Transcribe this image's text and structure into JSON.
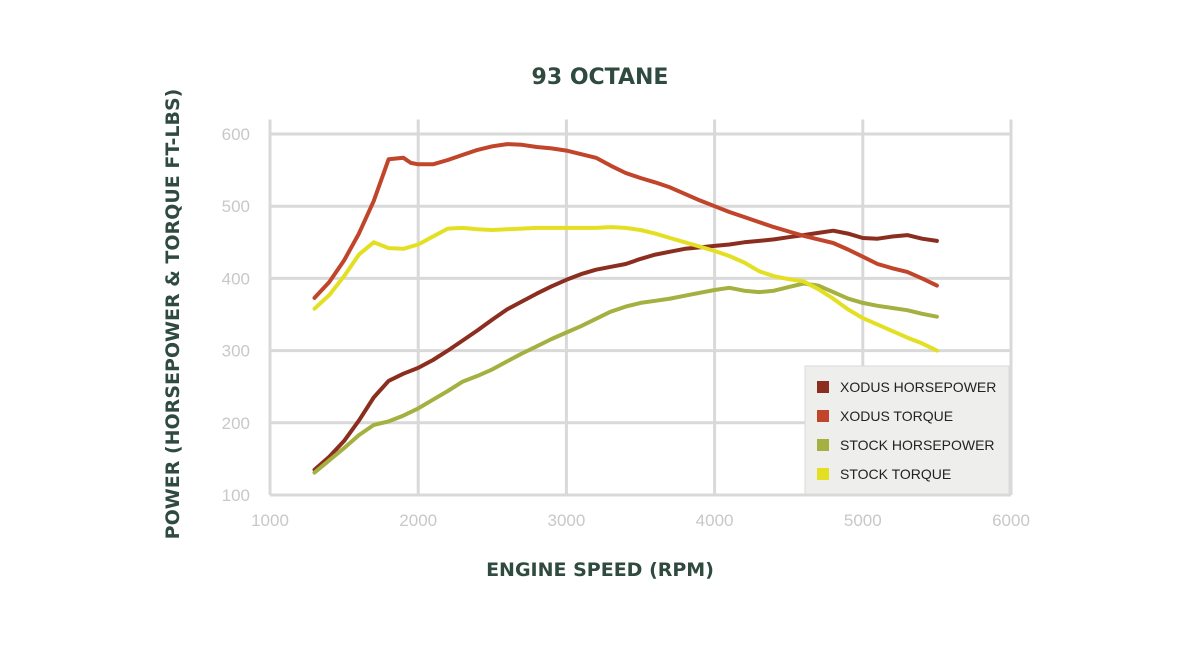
{
  "chart_data": {
    "type": "line",
    "title": "93 OCTANE",
    "xlabel": "ENGINE SPEED (RPM)",
    "ylabel": "POWER (HORSEPOWER & TORQUE FT-LBS)",
    "xlim": [
      1000,
      6000
    ],
    "ylim": [
      100,
      620
    ],
    "xticks": [
      1000,
      2000,
      3000,
      4000,
      5000,
      6000
    ],
    "yticks": [
      100,
      200,
      300,
      400,
      500,
      600
    ],
    "xtick_labels": [
      "1000",
      "2000",
      "3000",
      "4000",
      "5000",
      "6000"
    ],
    "ytick_labels": [
      "100",
      "200",
      "300",
      "400",
      "500",
      "600"
    ],
    "grid": true,
    "legend_position": "bottom-right",
    "series": [
      {
        "name": "XODUS HORSEPOWER",
        "color": "#8b2e1f",
        "points": [
          [
            1300,
            135
          ],
          [
            1400,
            153
          ],
          [
            1500,
            175
          ],
          [
            1600,
            203
          ],
          [
            1700,
            235
          ],
          [
            1800,
            258
          ],
          [
            1900,
            268
          ],
          [
            2000,
            276
          ],
          [
            2100,
            287
          ],
          [
            2200,
            300
          ],
          [
            2300,
            314
          ],
          [
            2400,
            328
          ],
          [
            2500,
            343
          ],
          [
            2600,
            357
          ],
          [
            2700,
            368
          ],
          [
            2800,
            379
          ],
          [
            2900,
            389
          ],
          [
            3000,
            398
          ],
          [
            3100,
            406
          ],
          [
            3200,
            412
          ],
          [
            3300,
            416
          ],
          [
            3400,
            420
          ],
          [
            3500,
            427
          ],
          [
            3600,
            433
          ],
          [
            3700,
            437
          ],
          [
            3800,
            441
          ],
          [
            3900,
            443
          ],
          [
            4000,
            445
          ],
          [
            4100,
            447
          ],
          [
            4200,
            450
          ],
          [
            4300,
            452
          ],
          [
            4400,
            454
          ],
          [
            4500,
            457
          ],
          [
            4600,
            460
          ],
          [
            4700,
            463
          ],
          [
            4800,
            466
          ],
          [
            4900,
            462
          ],
          [
            5000,
            456
          ],
          [
            5100,
            455
          ],
          [
            5200,
            458
          ],
          [
            5300,
            460
          ],
          [
            5400,
            455
          ],
          [
            5500,
            452
          ]
        ]
      },
      {
        "name": "XODUS TORQUE",
        "color": "#c0452a",
        "points": [
          [
            1300,
            373
          ],
          [
            1400,
            395
          ],
          [
            1500,
            425
          ],
          [
            1600,
            462
          ],
          [
            1700,
            507
          ],
          [
            1800,
            565
          ],
          [
            1900,
            567
          ],
          [
            1950,
            560
          ],
          [
            2000,
            558
          ],
          [
            2100,
            558
          ],
          [
            2200,
            564
          ],
          [
            2300,
            571
          ],
          [
            2400,
            578
          ],
          [
            2500,
            583
          ],
          [
            2600,
            586
          ],
          [
            2700,
            585
          ],
          [
            2800,
            582
          ],
          [
            2900,
            580
          ],
          [
            3000,
            577
          ],
          [
            3100,
            572
          ],
          [
            3200,
            567
          ],
          [
            3300,
            556
          ],
          [
            3400,
            546
          ],
          [
            3500,
            539
          ],
          [
            3600,
            533
          ],
          [
            3700,
            526
          ],
          [
            3800,
            517
          ],
          [
            3900,
            508
          ],
          [
            4000,
            500
          ],
          [
            4100,
            492
          ],
          [
            4200,
            485
          ],
          [
            4300,
            478
          ],
          [
            4400,
            471
          ],
          [
            4500,
            465
          ],
          [
            4600,
            459
          ],
          [
            4700,
            454
          ],
          [
            4800,
            449
          ],
          [
            4900,
            440
          ],
          [
            5000,
            430
          ],
          [
            5100,
            420
          ],
          [
            5200,
            414
          ],
          [
            5300,
            409
          ],
          [
            5400,
            400
          ],
          [
            5500,
            390
          ]
        ]
      },
      {
        "name": "STOCK HORSEPOWER",
        "color": "#a4b040",
        "points": [
          [
            1300,
            131
          ],
          [
            1400,
            148
          ],
          [
            1500,
            165
          ],
          [
            1600,
            183
          ],
          [
            1700,
            197
          ],
          [
            1800,
            202
          ],
          [
            1900,
            210
          ],
          [
            2000,
            220
          ],
          [
            2100,
            232
          ],
          [
            2200,
            244
          ],
          [
            2300,
            257
          ],
          [
            2400,
            265
          ],
          [
            2500,
            274
          ],
          [
            2600,
            285
          ],
          [
            2700,
            296
          ],
          [
            2800,
            306
          ],
          [
            2900,
            316
          ],
          [
            3000,
            325
          ],
          [
            3100,
            334
          ],
          [
            3200,
            344
          ],
          [
            3300,
            354
          ],
          [
            3400,
            361
          ],
          [
            3500,
            366
          ],
          [
            3600,
            369
          ],
          [
            3700,
            372
          ],
          [
            3800,
            376
          ],
          [
            3900,
            380
          ],
          [
            4000,
            384
          ],
          [
            4100,
            387
          ],
          [
            4200,
            383
          ],
          [
            4300,
            381
          ],
          [
            4400,
            383
          ],
          [
            4500,
            388
          ],
          [
            4600,
            393
          ],
          [
            4700,
            390
          ],
          [
            4800,
            381
          ],
          [
            4900,
            372
          ],
          [
            5000,
            366
          ],
          [
            5100,
            362
          ],
          [
            5200,
            359
          ],
          [
            5300,
            356
          ],
          [
            5400,
            351
          ],
          [
            5500,
            347
          ]
        ]
      },
      {
        "name": "STOCK TORQUE",
        "color": "#e3e023",
        "points": [
          [
            1300,
            358
          ],
          [
            1400,
            377
          ],
          [
            1500,
            403
          ],
          [
            1600,
            433
          ],
          [
            1700,
            450
          ],
          [
            1800,
            442
          ],
          [
            1900,
            441
          ],
          [
            2000,
            447
          ],
          [
            2100,
            458
          ],
          [
            2200,
            469
          ],
          [
            2300,
            470
          ],
          [
            2400,
            468
          ],
          [
            2500,
            467
          ],
          [
            2600,
            468
          ],
          [
            2700,
            469
          ],
          [
            2800,
            470
          ],
          [
            2900,
            470
          ],
          [
            3000,
            470
          ],
          [
            3100,
            470
          ],
          [
            3200,
            470
          ],
          [
            3300,
            471
          ],
          [
            3400,
            470
          ],
          [
            3500,
            467
          ],
          [
            3600,
            462
          ],
          [
            3700,
            456
          ],
          [
            3800,
            450
          ],
          [
            3900,
            444
          ],
          [
            4000,
            438
          ],
          [
            4100,
            431
          ],
          [
            4200,
            422
          ],
          [
            4300,
            410
          ],
          [
            4400,
            403
          ],
          [
            4500,
            399
          ],
          [
            4600,
            396
          ],
          [
            4700,
            385
          ],
          [
            4800,
            372
          ],
          [
            4900,
            357
          ],
          [
            5000,
            345
          ],
          [
            5100,
            336
          ],
          [
            5200,
            327
          ],
          [
            5300,
            318
          ],
          [
            5400,
            310
          ],
          [
            5500,
            300
          ]
        ]
      }
    ]
  }
}
